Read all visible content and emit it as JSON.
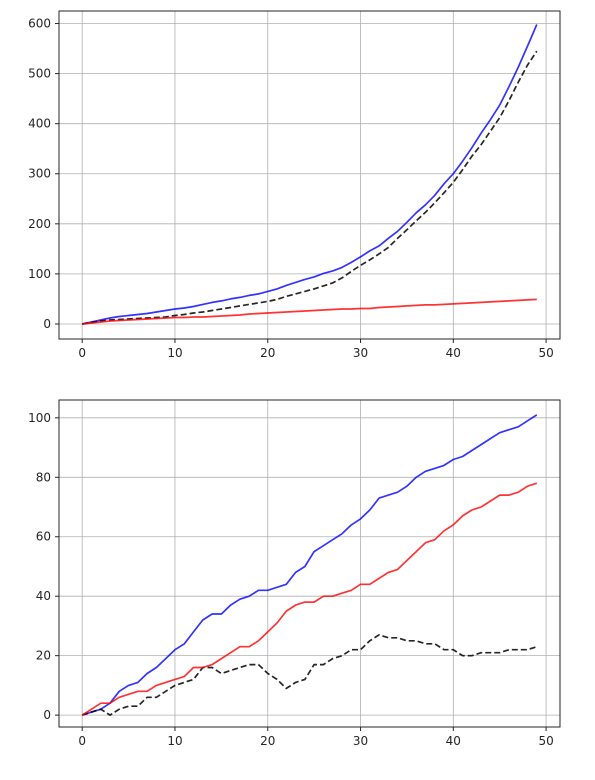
{
  "chart_data": [
    {
      "type": "line",
      "grid": true,
      "xlim": [
        -2.5,
        51.5
      ],
      "ylim": [
        -30,
        625
      ],
      "xticks": [
        0,
        10,
        20,
        30,
        40,
        50
      ],
      "yticks": [
        0,
        100,
        200,
        300,
        400,
        500,
        600
      ],
      "x": [
        0,
        1,
        2,
        3,
        4,
        5,
        6,
        7,
        8,
        9,
        10,
        11,
        12,
        13,
        14,
        15,
        16,
        17,
        18,
        19,
        20,
        21,
        22,
        23,
        24,
        25,
        26,
        27,
        28,
        29,
        30,
        31,
        32,
        33,
        34,
        35,
        36,
        37,
        38,
        39,
        40,
        41,
        42,
        43,
        44,
        45,
        46,
        47,
        48,
        49
      ],
      "series": [
        {
          "color": "#0000ff",
          "dash": "solid",
          "values": [
            0,
            4,
            8,
            12,
            15,
            17,
            19,
            21,
            24,
            27,
            30,
            32,
            35,
            39,
            43,
            46,
            50,
            53,
            57,
            60,
            65,
            70,
            77,
            83,
            89,
            94,
            101,
            106,
            113,
            123,
            134,
            146,
            156,
            171,
            185,
            203,
            222,
            238,
            257,
            280,
            300,
            325,
            352,
            381,
            408,
            437,
            474,
            513,
            555,
            598
          ]
        },
        {
          "color": "#000000",
          "dash": "dashed",
          "values": [
            0,
            3,
            6,
            8,
            9,
            10,
            11,
            12,
            13,
            14,
            17,
            19,
            22,
            24,
            27,
            30,
            33,
            36,
            39,
            42,
            45,
            49,
            55,
            60,
            65,
            70,
            76,
            82,
            92,
            105,
            117,
            128,
            140,
            153,
            171,
            188,
            206,
            223,
            242,
            262,
            283,
            308,
            335,
            358,
            385,
            412,
            446,
            483,
            517,
            545
          ]
        },
        {
          "color": "#ff0000",
          "dash": "solid",
          "values": [
            0,
            2,
            4,
            6,
            7,
            8,
            9,
            10,
            11,
            12,
            13,
            13,
            14,
            14,
            15,
            16,
            17,
            18,
            20,
            21,
            22,
            23,
            24,
            25,
            26,
            27,
            28,
            29,
            30,
            30,
            31,
            31,
            33,
            34,
            35,
            36,
            37,
            38,
            38,
            39,
            40,
            41,
            42,
            43,
            44,
            45,
            46,
            47,
            48,
            49
          ]
        }
      ]
    },
    {
      "type": "line",
      "grid": true,
      "xlim": [
        -2.5,
        51.5
      ],
      "ylim": [
        -4,
        106
      ],
      "xticks": [
        0,
        10,
        20,
        30,
        40,
        50
      ],
      "yticks": [
        0,
        20,
        40,
        60,
        80,
        100
      ],
      "x": [
        0,
        1,
        2,
        3,
        4,
        5,
        6,
        7,
        8,
        9,
        10,
        11,
        12,
        13,
        14,
        15,
        16,
        17,
        18,
        19,
        20,
        21,
        22,
        23,
        24,
        25,
        26,
        27,
        28,
        29,
        30,
        31,
        32,
        33,
        34,
        35,
        36,
        37,
        38,
        39,
        40,
        41,
        42,
        43,
        44,
        45,
        46,
        47,
        48,
        49
      ],
      "series": [
        {
          "color": "#0000ff",
          "dash": "solid",
          "values": [
            0,
            1,
            2,
            4,
            8,
            10,
            11,
            14,
            16,
            19,
            22,
            24,
            28,
            32,
            34,
            34,
            37,
            39,
            40,
            42,
            42,
            43,
            44,
            48,
            50,
            55,
            57,
            59,
            61,
            64,
            66,
            69,
            73,
            74,
            75,
            77,
            80,
            82,
            83,
            84,
            86,
            87,
            89,
            91,
            93,
            95,
            96,
            97,
            99,
            101
          ]
        },
        {
          "color": "#000000",
          "dash": "dashed",
          "values": [
            0,
            1,
            2,
            0,
            2,
            3,
            3,
            6,
            6,
            8,
            10,
            11,
            12,
            16,
            16,
            14,
            15,
            16,
            17,
            17,
            14,
            12,
            9,
            11,
            12,
            17,
            17,
            19,
            20,
            22,
            22,
            25,
            27,
            26,
            26,
            25,
            25,
            24,
            24,
            22,
            22,
            20,
            20,
            21,
            21,
            21,
            22,
            22,
            22,
            23
          ]
        },
        {
          "color": "#ff0000",
          "dash": "solid",
          "values": [
            0,
            2,
            4,
            4,
            6,
            7,
            8,
            8,
            10,
            11,
            12,
            13,
            16,
            16,
            17,
            19,
            21,
            23,
            23,
            25,
            28,
            31,
            35,
            37,
            38,
            38,
            40,
            40,
            41,
            42,
            44,
            44,
            46,
            48,
            49,
            52,
            55,
            58,
            59,
            62,
            64,
            67,
            69,
            70,
            72,
            74,
            74,
            75,
            77,
            78
          ]
        }
      ]
    }
  ]
}
